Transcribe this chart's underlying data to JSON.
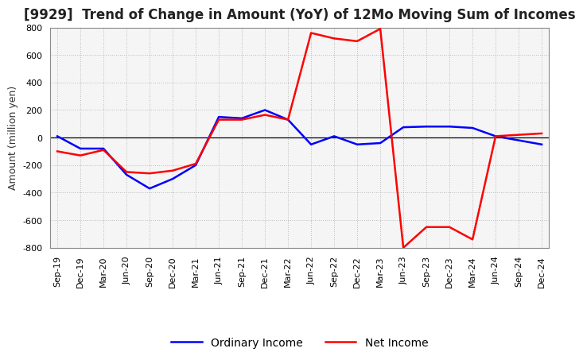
{
  "title": "[9929]  Trend of Change in Amount (YoY) of 12Mo Moving Sum of Incomes",
  "ylabel": "Amount (million yen)",
  "ylim": [
    -800,
    800
  ],
  "yticks": [
    -800,
    -600,
    -400,
    -200,
    0,
    200,
    400,
    600,
    800
  ],
  "background_color": "#ffffff",
  "plot_bg_color": "#f5f5f5",
  "grid_color": "#bbbbbb",
  "labels": [
    "Sep-19",
    "Dec-19",
    "Mar-20",
    "Jun-20",
    "Sep-20",
    "Dec-20",
    "Mar-21",
    "Jun-21",
    "Sep-21",
    "Dec-21",
    "Mar-22",
    "Jun-22",
    "Sep-22",
    "Dec-22",
    "Mar-23",
    "Jun-23",
    "Sep-23",
    "Dec-23",
    "Mar-24",
    "Jun-24",
    "Sep-24",
    "Dec-24"
  ],
  "ordinary_income": [
    10,
    -80,
    -80,
    -270,
    -370,
    -300,
    -200,
    150,
    140,
    200,
    130,
    -50,
    10,
    -50,
    -40,
    75,
    80,
    80,
    70,
    10,
    -20,
    -50
  ],
  "net_income": [
    -100,
    -130,
    -90,
    -250,
    -260,
    -240,
    -190,
    130,
    130,
    165,
    130,
    760,
    720,
    700,
    790,
    -800,
    -650,
    -650,
    -740,
    10,
    20,
    30
  ],
  "ordinary_color": "#0000ff",
  "net_color": "#ff0000",
  "legend_ordinary": "Ordinary Income",
  "legend_net": "Net Income",
  "title_fontsize": 12,
  "axis_fontsize": 9,
  "tick_fontsize": 8,
  "line_width": 1.8
}
